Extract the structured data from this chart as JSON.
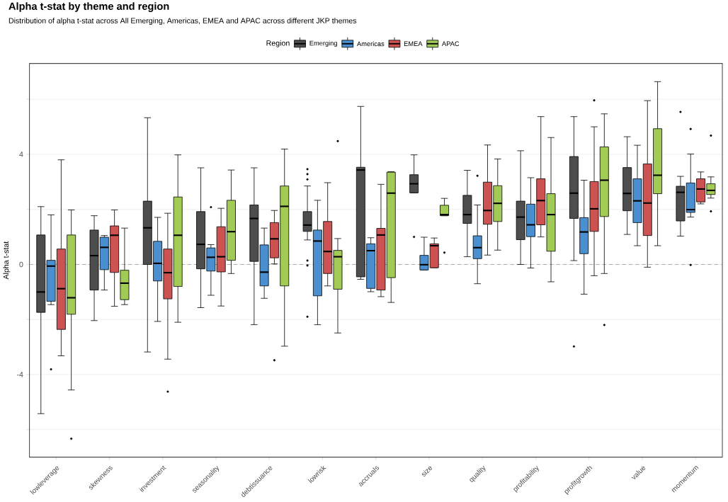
{
  "chart_data": {
    "type": "box",
    "title": "Alpha t-stat by theme and region",
    "subtitle": "Distribution of alpha t-stat across All Emerging, Americas, EMEA and APAC across different JKP themes",
    "ylabel": "Alpha t-stat",
    "legend_title": "Region",
    "legend": "top",
    "grid": "y",
    "categories": [
      "lowleverage",
      "skewness",
      "investment",
      "seasonality",
      "debtissuance",
      "lowrisk",
      "accruals",
      "size",
      "quality",
      "profitability",
      "profitgrowth",
      "value",
      "momentum"
    ],
    "ylim": [
      -7,
      7.3
    ],
    "yticks": [
      {
        "value": -6,
        "label": null
      },
      -4,
      {
        "value": -2,
        "label": null
      },
      0,
      {
        "value": 2,
        "label": null
      },
      4,
      {
        "value": 6,
        "label": null
      }
    ],
    "ref_lines": [
      {
        "axis": "y",
        "value": 0,
        "color": "#999999",
        "line_style": "dashed"
      }
    ],
    "series": [
      {
        "name": "Emerging",
        "color": "#4d4d4d",
        "boxes": [
          {
            "low": -5.42,
            "q1": -1.74,
            "median": -1.0,
            "q3": 1.07,
            "high": 2.1
          },
          {
            "low": -2.04,
            "q1": -0.93,
            "median": 0.32,
            "q3": 1.25,
            "high": 1.77
          },
          {
            "low": -3.18,
            "q1": 0,
            "median": 1.33,
            "q3": 2.3,
            "high": 5.33
          },
          {
            "low": -1.57,
            "q1": -0.16,
            "median": 0.73,
            "q3": 1.92,
            "high": 3.51
          },
          {
            "low": -2.19,
            "q1": 0.11,
            "median": 1.67,
            "q3": 2.16,
            "high": 3.51
          },
          {
            "low": 0.89,
            "q1": 1.2,
            "median": 1.43,
            "q3": 1.92,
            "high": 2.85,
            "outliers": [
              3.46,
              3.28,
              3.09,
              0.14,
              -0.04,
              -1.9
            ]
          },
          {
            "low": -0.54,
            "q1": -0.45,
            "median": 3.43,
            "q3": 3.53,
            "high": 5.74
          },
          {
            "low": 2.6,
            "q1": 2.6,
            "median": 2.93,
            "q3": 3.26,
            "high": 3.98,
            "outliers": [
              1.0
            ]
          },
          {
            "low": 0.28,
            "q1": 1.49,
            "median": 1.81,
            "q3": 2.51,
            "high": 3.42
          },
          {
            "low": 0,
            "q1": 0.9,
            "median": 1.72,
            "q3": 2.3,
            "high": 4.13
          },
          {
            "low": 0.14,
            "q1": 1.67,
            "median": 2.59,
            "q3": 3.92,
            "high": 5.37,
            "outliers": [
              -2.98
            ]
          },
          {
            "low": 1.09,
            "q1": 1.95,
            "median": 2.58,
            "q3": 3.52,
            "high": 4.64
          },
          {
            "low": 1.03,
            "q1": 1.58,
            "median": 2.62,
            "q3": 2.84,
            "high": 3.2,
            "outliers": [
              5.54
            ]
          }
        ]
      },
      {
        "name": "Americas",
        "color": "#4a8fd0",
        "boxes": [
          {
            "low": -1.46,
            "q1": -1.34,
            "median": -0.06,
            "q3": 0.15,
            "high": 1.8,
            "outliers": [
              -3.81
            ]
          },
          {
            "low": -0.93,
            "q1": -0.19,
            "median": 0.62,
            "q3": 0.99,
            "high": 1.05
          },
          {
            "low": -2.07,
            "q1": -0.6,
            "median": 0.04,
            "q3": 0.84,
            "high": 1.71
          },
          {
            "low": -1.12,
            "q1": -0.24,
            "median": 0.26,
            "q3": 0.6,
            "high": 0.72,
            "outliers": [
              2.08
            ]
          },
          {
            "low": -1.23,
            "q1": -0.78,
            "median": -0.28,
            "q3": 0.71,
            "high": 1.32
          },
          {
            "low": -2.19,
            "q1": -1.14,
            "median": 0.85,
            "q3": 1.25,
            "high": 2.33
          },
          {
            "low": -0.99,
            "q1": -0.87,
            "median": 0.5,
            "q3": 0.75,
            "high": 0.97
          },
          {
            "low": -0.2,
            "q1": -0.2,
            "median": -0.01,
            "q3": 0.33,
            "high": 0.99
          },
          {
            "low": -0.7,
            "q1": 0.21,
            "median": 0.61,
            "q3": 1.04,
            "high": 2.16,
            "outliers": [
              3.22
            ]
          },
          {
            "low": -0.13,
            "q1": 1.01,
            "median": 1.44,
            "q3": 2.19,
            "high": 3.15
          },
          {
            "low": -1.08,
            "q1": 0.39,
            "median": 1.18,
            "q3": 1.7,
            "high": 3.06
          },
          {
            "low": 0.68,
            "q1": 1.52,
            "median": 2.31,
            "q3": 3.11,
            "high": 4.33
          },
          {
            "low": 1.72,
            "q1": 1.89,
            "median": 1.99,
            "q3": 2.96,
            "high": 4.01,
            "outliers": [
              4.92,
              -0.02
            ]
          }
        ]
      },
      {
        "name": "EMEA",
        "color": "#cd5252",
        "boxes": [
          {
            "low": -3.32,
            "q1": -2.36,
            "median": -0.88,
            "q3": 0.56,
            "high": 3.8
          },
          {
            "low": -1.52,
            "q1": -0.29,
            "median": 1.06,
            "q3": 1.4,
            "high": 1.98
          },
          {
            "low": -3.44,
            "q1": -1.25,
            "median": -0.3,
            "q3": 0.56,
            "high": 1.86,
            "outliers": [
              -4.62
            ]
          },
          {
            "low": -1.51,
            "q1": -0.27,
            "median": 0.28,
            "q3": 1.37,
            "high": 2.04
          },
          {
            "low": 0.02,
            "q1": 0.24,
            "median": 0.93,
            "q3": 1.52,
            "high": 1.96,
            "outliers": [
              -3.48
            ]
          },
          {
            "low": -0.78,
            "q1": -0.33,
            "median": 0.47,
            "q3": 1.56,
            "high": 2.97
          },
          {
            "low": -1.17,
            "q1": -0.93,
            "median": 1.07,
            "q3": 1.31,
            "high": 2.91
          },
          {
            "low": -0.12,
            "q1": -0.12,
            "median": 0.68,
            "q3": 0.75,
            "high": 0.96
          },
          {
            "low": 0.34,
            "q1": 1.46,
            "median": 1.96,
            "q3": 2.99,
            "high": 4.34
          },
          {
            "low": 1.0,
            "q1": 1.44,
            "median": 2.32,
            "q3": 3.11,
            "high": 5.37
          },
          {
            "low": -0.41,
            "q1": 1.2,
            "median": 2.02,
            "q3": 3.01,
            "high": 5.0,
            "outliers": [
              5.96
            ]
          },
          {
            "low": -0.1,
            "q1": 1.05,
            "median": 2.23,
            "q3": 3.65,
            "high": 5.95
          },
          {
            "low": 2.2,
            "q1": 2.27,
            "median": 2.74,
            "q3": 3.11,
            "high": 3.36
          }
        ]
      },
      {
        "name": "APAC",
        "color": "#a2cb56",
        "boxes": [
          {
            "low": -4.56,
            "q1": -1.81,
            "median": -1.21,
            "q3": 1.07,
            "high": 1.98,
            "outliers": [
              -6.33
            ]
          },
          {
            "low": -1.46,
            "q1": -1.28,
            "median": -0.68,
            "q3": -0.21,
            "high": 1.32
          },
          {
            "low": -2.1,
            "q1": -0.8,
            "median": 1.06,
            "q3": 2.45,
            "high": 3.98
          },
          {
            "low": -0.33,
            "q1": 0.15,
            "median": 1.19,
            "q3": 2.33,
            "high": 3.43
          },
          {
            "low": -2.97,
            "q1": -0.78,
            "median": 2.11,
            "q3": 2.85,
            "high": 4.19
          },
          {
            "low": -2.49,
            "q1": -0.9,
            "median": 0.28,
            "q3": 0.51,
            "high": 0.94,
            "outliers": [
              4.48
            ]
          },
          {
            "low": -1.38,
            "q1": -0.48,
            "median": 2.59,
            "q3": 3.35,
            "high": 3.37
          },
          {
            "low": 1.77,
            "q1": 1.77,
            "median": 1.81,
            "q3": 2.15,
            "high": 2.4,
            "outliers": [
              0.43
            ]
          },
          {
            "low": 0.52,
            "q1": 1.56,
            "median": 2.22,
            "q3": 2.86,
            "high": 3.83
          },
          {
            "low": -0.63,
            "q1": 0.48,
            "median": 1.81,
            "q3": 2.57,
            "high": 4.61
          },
          {
            "low": -0.33,
            "q1": 1.74,
            "median": 3.06,
            "q3": 4.27,
            "high": 5.47,
            "outliers": [
              -2.2
            ]
          },
          {
            "low": 0.68,
            "q1": 2.57,
            "median": 3.24,
            "q3": 4.93,
            "high": 6.64
          },
          {
            "low": 2.41,
            "q1": 2.54,
            "median": 2.69,
            "q3": 2.93,
            "high": 3.18,
            "outliers": [
              4.68,
              1.93
            ]
          }
        ]
      }
    ]
  }
}
